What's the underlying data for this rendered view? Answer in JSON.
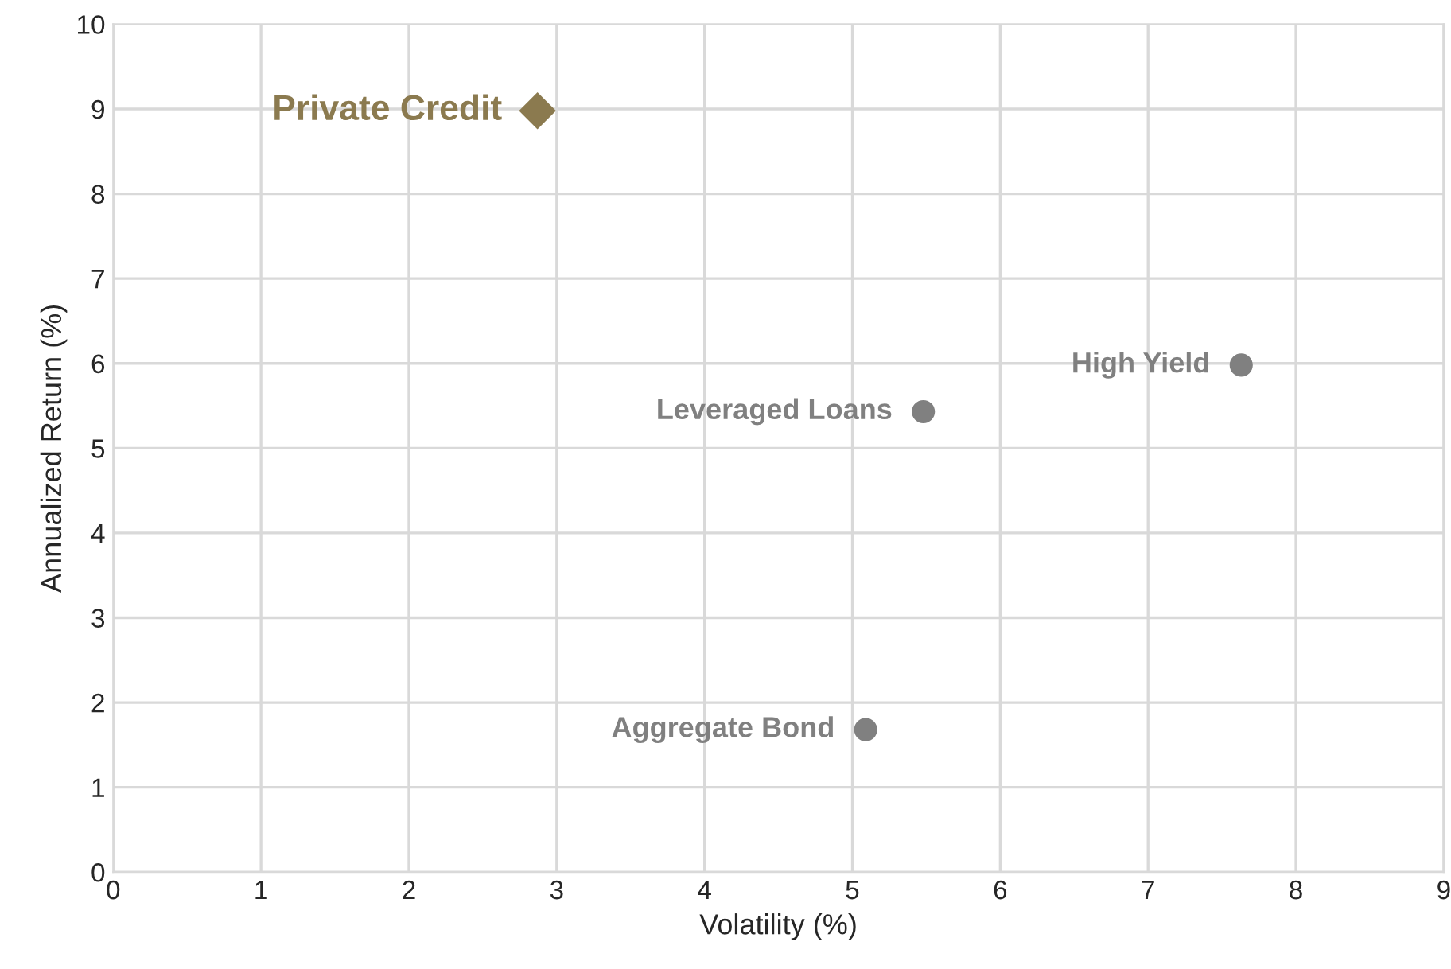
{
  "chart_data": {
    "type": "scatter",
    "xlabel": "Volatility (%)",
    "ylabel": "Annualized Return (%)",
    "xlim": [
      0,
      9
    ],
    "xticks": [
      0,
      1,
      2,
      3,
      4,
      5,
      6,
      7,
      8,
      9
    ],
    "ylim": [
      0,
      10
    ],
    "yticks": [
      0,
      1,
      2,
      3,
      4,
      5,
      6,
      7,
      8,
      9,
      10
    ],
    "grid": true,
    "legend": false,
    "series": [
      {
        "name": "Private Credit",
        "color": "#8b7a4f",
        "marker": "diamond",
        "x": [
          2.87
        ],
        "values": [
          8.98
        ]
      },
      {
        "name": "Leveraged Loans",
        "color": "#808080",
        "marker": "circle",
        "x": [
          5.48
        ],
        "values": [
          5.43
        ]
      },
      {
        "name": "High Yield",
        "color": "#808080",
        "marker": "circle",
        "x": [
          7.63
        ],
        "values": [
          5.98
        ]
      },
      {
        "name": "Aggregate Bond",
        "color": "#808080",
        "marker": "circle",
        "x": [
          5.09
        ],
        "values": [
          1.68
        ]
      }
    ]
  }
}
